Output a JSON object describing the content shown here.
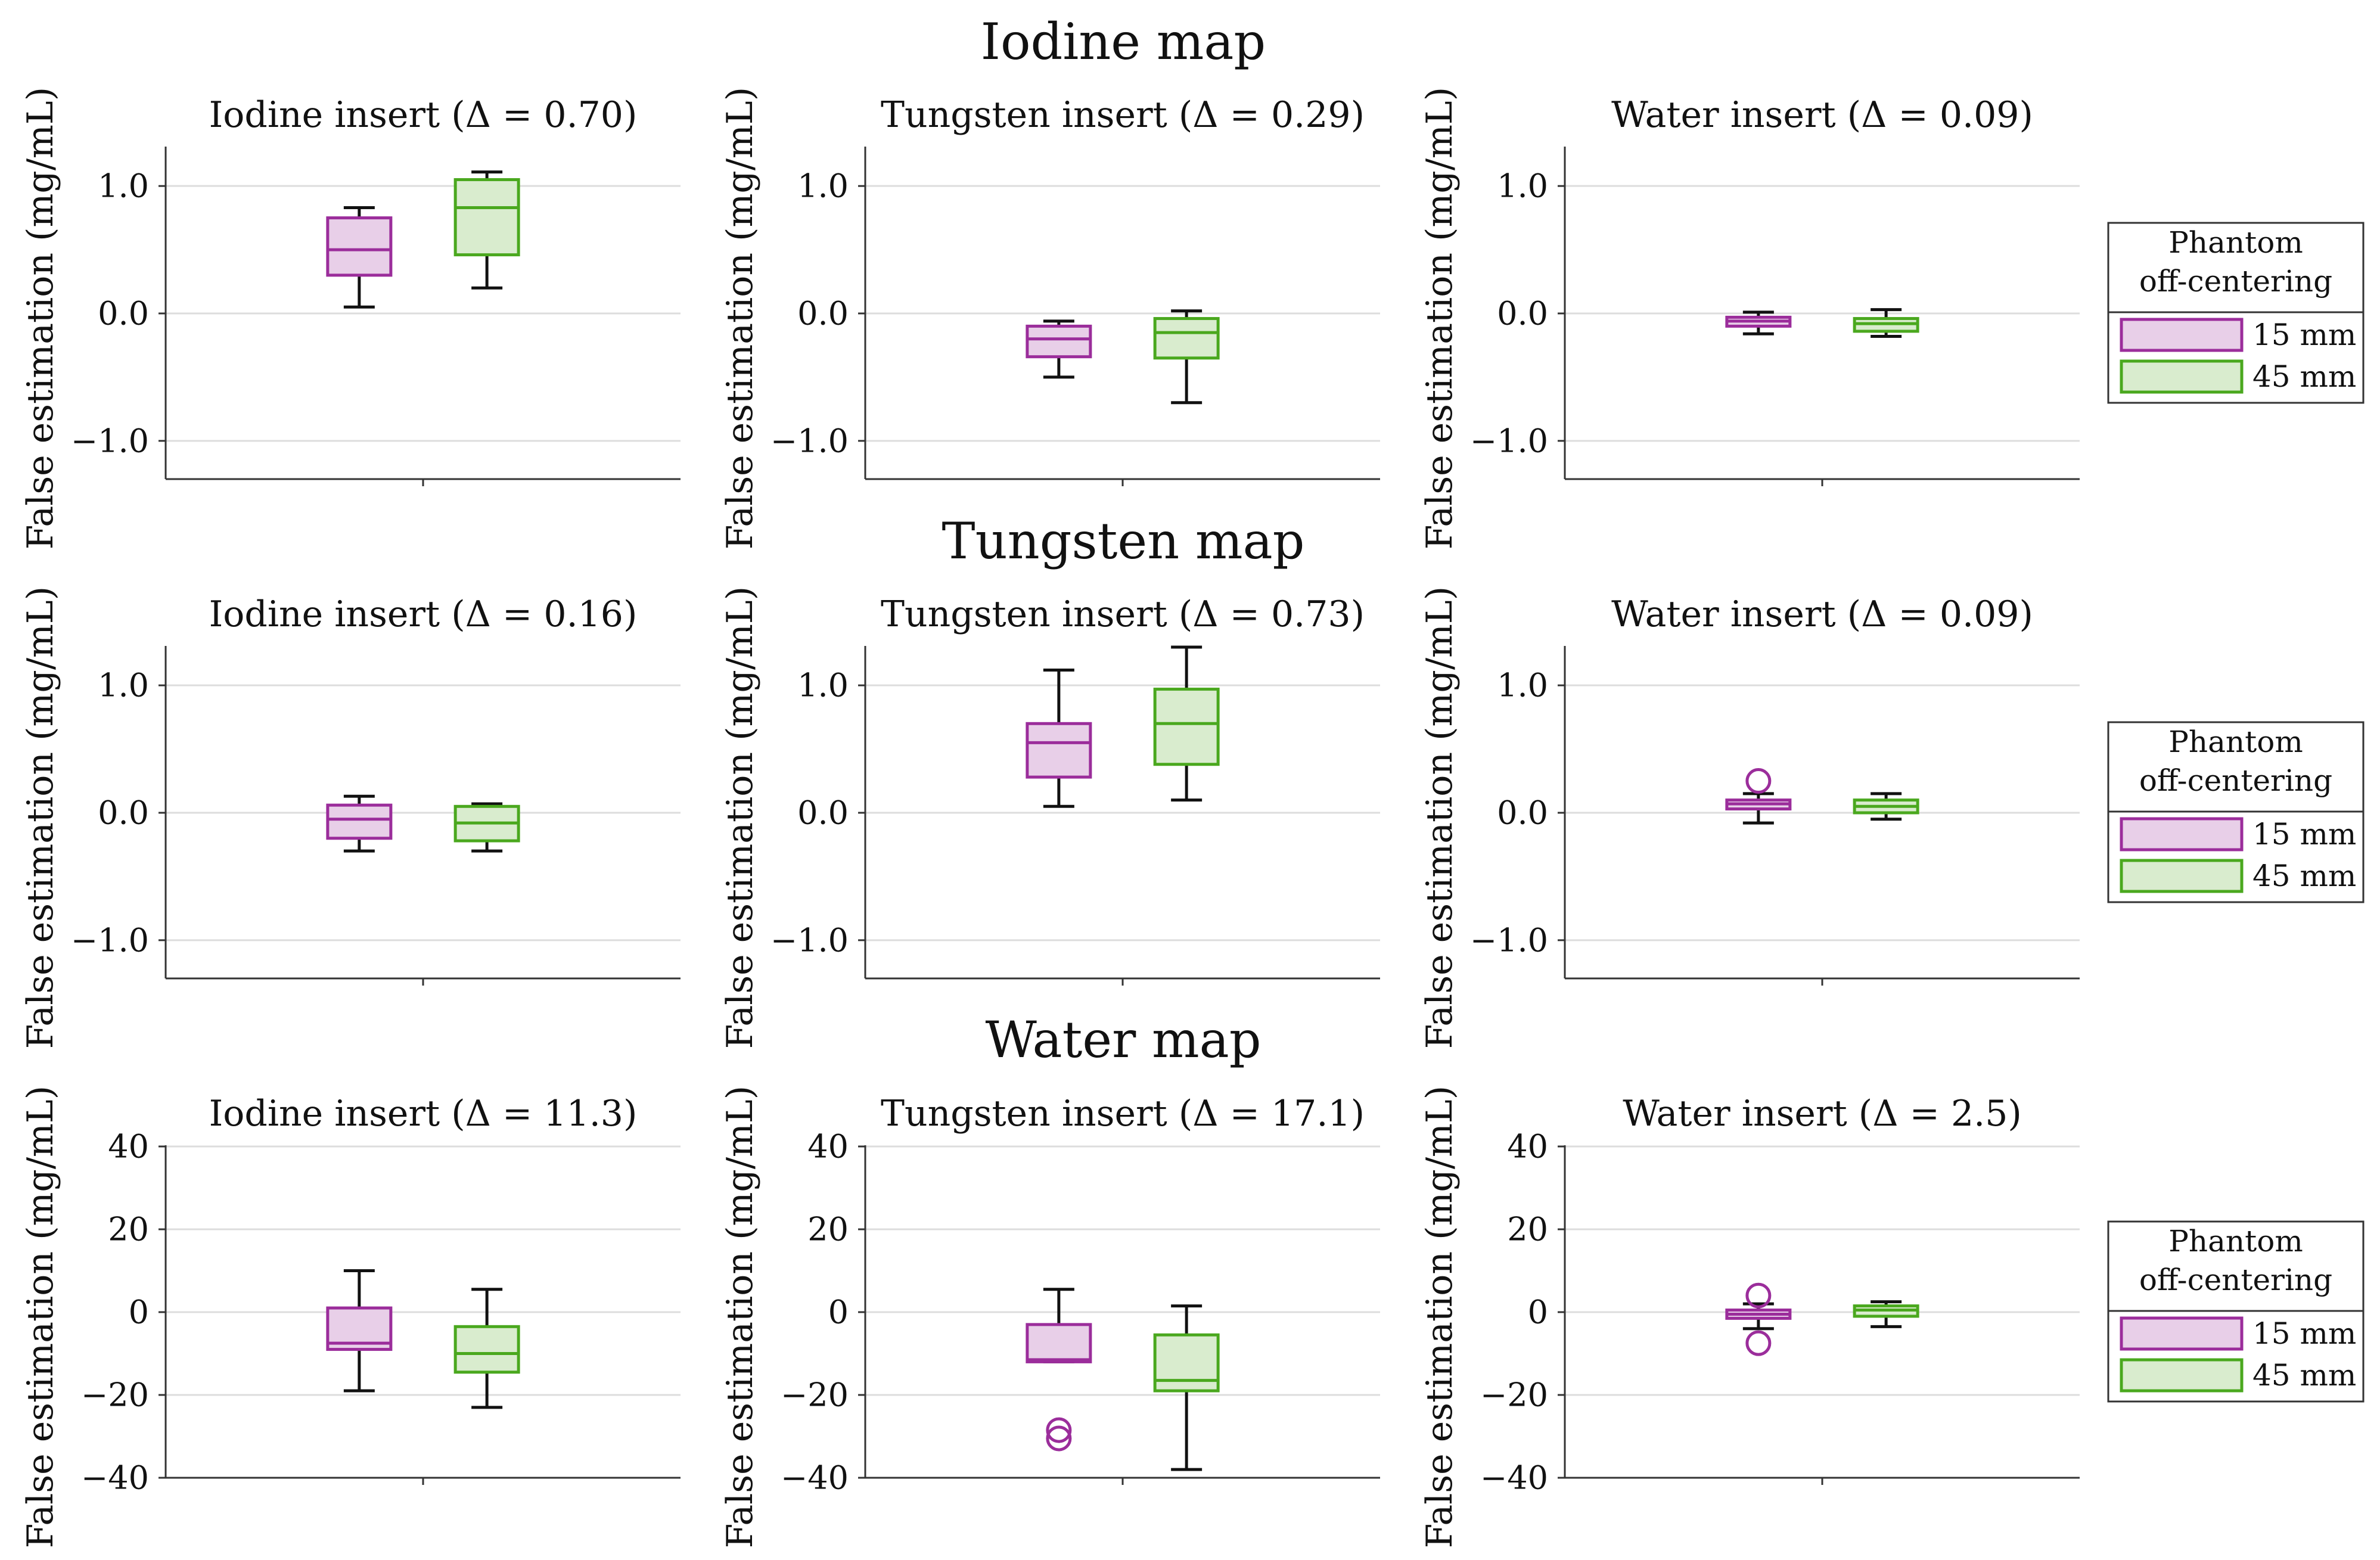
{
  "figure": {
    "rows": [
      {
        "title": "Iodine map",
        "ylim": [
          -1.3,
          1.3
        ],
        "yticks": [
          1.0,
          0.0,
          -1.0
        ],
        "ytick_labels": [
          "1.0",
          "0.0",
          "−1.0"
        ],
        "panels": [
          {
            "title": "Iodine insert (Δ = 0.70)"
          },
          {
            "title": "Tungsten insert (Δ = 0.29)"
          },
          {
            "title": "Water insert (Δ = 0.09)"
          }
        ]
      },
      {
        "title": "Tungsten map",
        "ylim": [
          -1.3,
          1.3
        ],
        "yticks": [
          1.0,
          0.0,
          -1.0
        ],
        "ytick_labels": [
          "1.0",
          "0.0",
          "−1.0"
        ],
        "panels": [
          {
            "title": "Iodine insert (Δ = 0.16)"
          },
          {
            "title": "Tungsten insert (Δ = 0.73)"
          },
          {
            "title": "Water insert (Δ = 0.09)"
          }
        ]
      },
      {
        "title": "Water map",
        "ylim": [
          -40,
          40
        ],
        "yticks": [
          40,
          20,
          0,
          -20,
          -40
        ],
        "ytick_labels": [
          "40",
          "20",
          "0",
          "−20",
          "−40"
        ],
        "panels": [
          {
            "title": "Iodine insert (Δ = 11.3)"
          },
          {
            "title": "Tungsten insert (Δ = 17.1)"
          },
          {
            "title": "Water insert (Δ = 2.5)"
          }
        ]
      }
    ],
    "ylabel": "False estimation (mg/mL)",
    "legend": {
      "title_line1": "Phantom",
      "title_line2": "off-centering",
      "items": [
        "15 mm",
        "45 mm"
      ]
    }
  },
  "colors": {
    "series_15": "#9b2d9b",
    "series_15_fill": "#e8cfe8",
    "series_45": "#4aa81e",
    "series_45_fill": "#d9ecce",
    "whisker": "#111111",
    "grid": "#dddddd",
    "axis": "#333333"
  },
  "chart_data": [
    {
      "type": "box",
      "title": "Iodine insert (Δ = 0.70)",
      "map": "Iodine map",
      "ylabel": "False estimation (mg/mL)",
      "ylim": [
        -1.3,
        1.3
      ],
      "series": [
        {
          "name": "15 mm",
          "whislo": 0.05,
          "q1": 0.3,
          "med": 0.5,
          "q3": 0.75,
          "whishi": 0.83,
          "fliers": []
        },
        {
          "name": "45 mm",
          "whislo": 0.2,
          "q1": 0.46,
          "med": 0.83,
          "q3": 1.05,
          "whishi": 1.11,
          "fliers": []
        }
      ]
    },
    {
      "type": "box",
      "title": "Tungsten insert (Δ = 0.29)",
      "map": "Iodine map",
      "ylabel": "False estimation (mg/mL)",
      "ylim": [
        -1.3,
        1.3
      ],
      "series": [
        {
          "name": "15 mm",
          "whislo": -0.5,
          "q1": -0.34,
          "med": -0.2,
          "q3": -0.1,
          "whishi": -0.06,
          "fliers": []
        },
        {
          "name": "45 mm",
          "whislo": -0.7,
          "q1": -0.35,
          "med": -0.15,
          "q3": -0.04,
          "whishi": 0.02,
          "fliers": []
        }
      ]
    },
    {
      "type": "box",
      "title": "Water insert (Δ = 0.09)",
      "map": "Iodine map",
      "ylabel": "False estimation (mg/mL)",
      "ylim": [
        -1.3,
        1.3
      ],
      "series": [
        {
          "name": "15 mm",
          "whislo": -0.16,
          "q1": -0.1,
          "med": -0.06,
          "q3": -0.03,
          "whishi": 0.01,
          "fliers": []
        },
        {
          "name": "45 mm",
          "whislo": -0.18,
          "q1": -0.14,
          "med": -0.08,
          "q3": -0.04,
          "whishi": 0.03,
          "fliers": []
        }
      ]
    },
    {
      "type": "box",
      "title": "Iodine insert (Δ = 0.16)",
      "map": "Tungsten map",
      "ylabel": "False estimation (mg/mL)",
      "ylim": [
        -1.3,
        1.3
      ],
      "series": [
        {
          "name": "15 mm",
          "whislo": -0.3,
          "q1": -0.2,
          "med": -0.05,
          "q3": 0.06,
          "whishi": 0.13,
          "fliers": []
        },
        {
          "name": "45 mm",
          "whislo": -0.3,
          "q1": -0.22,
          "med": -0.08,
          "q3": 0.05,
          "whishi": 0.07,
          "fliers": []
        }
      ]
    },
    {
      "type": "box",
      "title": "Tungsten insert (Δ = 0.73)",
      "map": "Tungsten map",
      "ylabel": "False estimation (mg/mL)",
      "ylim": [
        -1.3,
        1.3
      ],
      "series": [
        {
          "name": "15 mm",
          "whislo": 0.05,
          "q1": 0.28,
          "med": 0.55,
          "q3": 0.7,
          "whishi": 1.12,
          "fliers": []
        },
        {
          "name": "45 mm",
          "whislo": 0.1,
          "q1": 0.38,
          "med": 0.7,
          "q3": 0.97,
          "whishi": 1.3,
          "fliers": []
        }
      ]
    },
    {
      "type": "box",
      "title": "Water insert (Δ = 0.09)",
      "map": "Tungsten map",
      "ylabel": "False estimation (mg/mL)",
      "ylim": [
        -1.3,
        1.3
      ],
      "series": [
        {
          "name": "15 mm",
          "whislo": -0.08,
          "q1": 0.03,
          "med": 0.07,
          "q3": 0.1,
          "whishi": 0.15,
          "fliers": [
            0.25
          ]
        },
        {
          "name": "45 mm",
          "whislo": -0.05,
          "q1": 0.0,
          "med": 0.05,
          "q3": 0.1,
          "whishi": 0.15,
          "fliers": []
        }
      ]
    },
    {
      "type": "box",
      "title": "Iodine insert (Δ = 11.3)",
      "map": "Water map",
      "ylabel": "False estimation (mg/mL)",
      "ylim": [
        -40,
        40
      ],
      "series": [
        {
          "name": "15 mm",
          "whislo": -19,
          "q1": -9,
          "med": -7.5,
          "q3": 1,
          "whishi": 10,
          "fliers": []
        },
        {
          "name": "45 mm",
          "whislo": -23,
          "q1": -14.5,
          "med": -10,
          "q3": -3.5,
          "whishi": 5.5,
          "fliers": []
        }
      ]
    },
    {
      "type": "box",
      "title": "Tungsten insert (Δ = 17.1)",
      "map": "Water map",
      "ylabel": "False estimation (mg/mL)",
      "ylim": [
        -40,
        40
      ],
      "series": [
        {
          "name": "15 mm",
          "whislo": -12,
          "q1": -12,
          "med": -11.5,
          "q3": -3,
          "whishi": 5.5,
          "fliers": [
            -28.5,
            -30.5
          ]
        },
        {
          "name": "45 mm",
          "whislo": -38,
          "q1": -19,
          "med": -16.5,
          "q3": -5.5,
          "whishi": 1.5,
          "fliers": []
        }
      ]
    },
    {
      "type": "box",
      "title": "Water insert (Δ = 2.5)",
      "map": "Water map",
      "ylabel": "False estimation (mg/mL)",
      "ylim": [
        -40,
        40
      ],
      "series": [
        {
          "name": "15 mm",
          "whislo": -4,
          "q1": -1.5,
          "med": -0.5,
          "q3": 0.5,
          "whishi": 2,
          "fliers": [
            4,
            -7.5
          ]
        },
        {
          "name": "45 mm",
          "whislo": -3.5,
          "q1": -1,
          "med": 0.5,
          "q3": 1.5,
          "whishi": 2.5,
          "fliers": []
        }
      ]
    }
  ]
}
